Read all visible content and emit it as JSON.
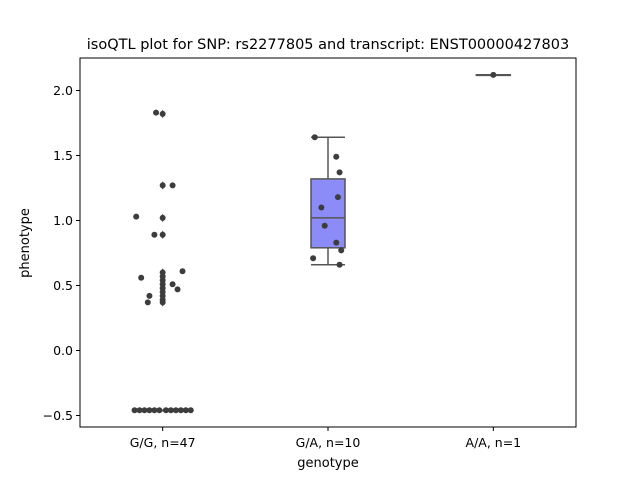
{
  "chart_data": {
    "type": "box",
    "title": "isoQTL plot for SNP: rs2277805 and transcript: ENST00000427803",
    "xlabel": "genotype",
    "ylabel": "phenotype",
    "ylim": [
      -0.6,
      2.25
    ],
    "yticks": [
      -0.5,
      0.0,
      0.5,
      1.0,
      1.5,
      2.0
    ],
    "ytick_labels": [
      "−0.5",
      "0.0",
      "0.5",
      "1.0",
      "1.5",
      "2.0"
    ],
    "grid": false,
    "box_color": "#8c8cf8",
    "point_color": "#3d3d3d",
    "line_color": "#555555",
    "categories": [
      "G/G, n=47",
      "G/A, n=10",
      "A/A, n=1"
    ],
    "groups": [
      {
        "label": "G/G, n=47",
        "box": {
          "q1": -0.46,
          "median": -0.46,
          "q3": -0.46,
          "whisker_low": -0.46,
          "whisker_high": -0.46
        },
        "outliers": [
          1.82,
          1.27,
          1.02,
          0.89,
          0.6,
          0.57,
          0.54,
          0.51,
          0.48,
          0.45,
          0.42,
          0.39,
          0.37
        ],
        "points": [
          {
            "x": -0.04,
            "y": 1.83
          },
          {
            "x": 0.0,
            "y": 1.82
          },
          {
            "x": 0.06,
            "y": 1.27
          },
          {
            "x": 0.0,
            "y": 1.27
          },
          {
            "x": -0.16,
            "y": 1.03
          },
          {
            "x": 0.0,
            "y": 1.02
          },
          {
            "x": -0.05,
            "y": 0.89
          },
          {
            "x": 0.0,
            "y": 0.89
          },
          {
            "x": 0.12,
            "y": 0.61
          },
          {
            "x": 0.0,
            "y": 0.6
          },
          {
            "x": -0.13,
            "y": 0.56
          },
          {
            "x": 0.0,
            "y": 0.57
          },
          {
            "x": 0.0,
            "y": 0.54
          },
          {
            "x": 0.06,
            "y": 0.51
          },
          {
            "x": 0.0,
            "y": 0.51
          },
          {
            "x": 0.09,
            "y": 0.47
          },
          {
            "x": 0.0,
            "y": 0.48
          },
          {
            "x": 0.0,
            "y": 0.45
          },
          {
            "x": -0.08,
            "y": 0.42
          },
          {
            "x": 0.0,
            "y": 0.42
          },
          {
            "x": 0.0,
            "y": 0.39
          },
          {
            "x": -0.09,
            "y": 0.37
          },
          {
            "x": 0.0,
            "y": 0.37
          },
          {
            "x": -0.17,
            "y": -0.46
          },
          {
            "x": -0.14,
            "y": -0.46
          },
          {
            "x": -0.11,
            "y": -0.46
          },
          {
            "x": -0.08,
            "y": -0.46
          },
          {
            "x": -0.05,
            "y": -0.46
          },
          {
            "x": -0.02,
            "y": -0.46
          },
          {
            "x": 0.02,
            "y": -0.46
          },
          {
            "x": 0.05,
            "y": -0.46
          },
          {
            "x": 0.08,
            "y": -0.46
          },
          {
            "x": 0.11,
            "y": -0.46
          },
          {
            "x": 0.14,
            "y": -0.46
          },
          {
            "x": 0.17,
            "y": -0.46
          }
        ]
      },
      {
        "label": "G/A, n=10",
        "box": {
          "q1": 0.79,
          "median": 1.02,
          "q3": 1.32,
          "whisker_low": 0.66,
          "whisker_high": 1.64
        },
        "outliers": [],
        "points": [
          {
            "x": -0.08,
            "y": 1.64
          },
          {
            "x": 0.05,
            "y": 1.49
          },
          {
            "x": 0.07,
            "y": 1.37
          },
          {
            "x": 0.06,
            "y": 1.18
          },
          {
            "x": -0.04,
            "y": 1.1
          },
          {
            "x": -0.02,
            "y": 0.96
          },
          {
            "x": 0.05,
            "y": 0.83
          },
          {
            "x": 0.08,
            "y": 0.77
          },
          {
            "x": -0.09,
            "y": 0.71
          },
          {
            "x": 0.07,
            "y": 0.66
          }
        ]
      },
      {
        "label": "A/A, n=1",
        "box": {
          "q1": 2.12,
          "median": 2.12,
          "q3": 2.12,
          "whisker_low": 2.12,
          "whisker_high": 2.12
        },
        "outliers": [],
        "points": [
          {
            "x": 0.0,
            "y": 2.12
          }
        ]
      }
    ]
  }
}
